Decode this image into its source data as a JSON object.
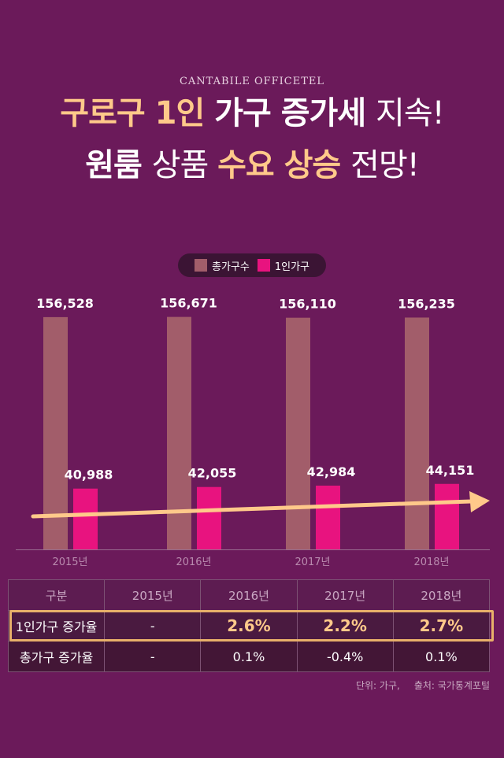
{
  "brand": "CANTABILE OFFICETEL",
  "headline": {
    "line1": [
      {
        "text": "구로구 1인 ",
        "style": "hl"
      },
      {
        "text": "가구 증가세 ",
        "style": "wh"
      },
      {
        "text": "지속!",
        "style": "wh thin"
      }
    ],
    "line2": [
      {
        "text": "원룸 ",
        "style": "wh"
      },
      {
        "text": "상품 ",
        "style": "wh thin"
      },
      {
        "text": "수요 상승 ",
        "style": "hl"
      },
      {
        "text": "전망!",
        "style": "wh thin"
      }
    ]
  },
  "colors": {
    "background": "#6b1a5a",
    "total_bar": "#a25d6a",
    "single_bar": "#e8137f",
    "trend_arrow": "#ffc98a",
    "highlight": "#ffc98a"
  },
  "chart_data": {
    "type": "bar",
    "categories": [
      "2015년",
      "2016년",
      "2017년",
      "2018년"
    ],
    "series": [
      {
        "name": "총가구수",
        "values": [
          156528,
          156671,
          156110,
          156235
        ],
        "labels": [
          "156,528",
          "156,671",
          "156,110",
          "156,235"
        ]
      },
      {
        "name": "1인가구",
        "values": [
          40988,
          42055,
          42984,
          44151
        ],
        "labels": [
          "40,988",
          "42,055",
          "42,984",
          "44,151"
        ]
      }
    ],
    "legend_position": "top-center",
    "grid": false,
    "trend_arrow": true
  },
  "table": {
    "header": [
      "구분",
      "2015년",
      "2016년",
      "2017년",
      "2018년"
    ],
    "rows": [
      {
        "label": "1인가구 증가율",
        "values": [
          "-",
          "2.6%",
          "2.2%",
          "2.7%"
        ]
      },
      {
        "label": "총가구 증가율",
        "values": [
          "-",
          "0.1%",
          "-0.4%",
          "0.1%"
        ]
      }
    ]
  },
  "source": {
    "unit": "단위: 가구,",
    "origin": "출처: 국가통계포털"
  }
}
